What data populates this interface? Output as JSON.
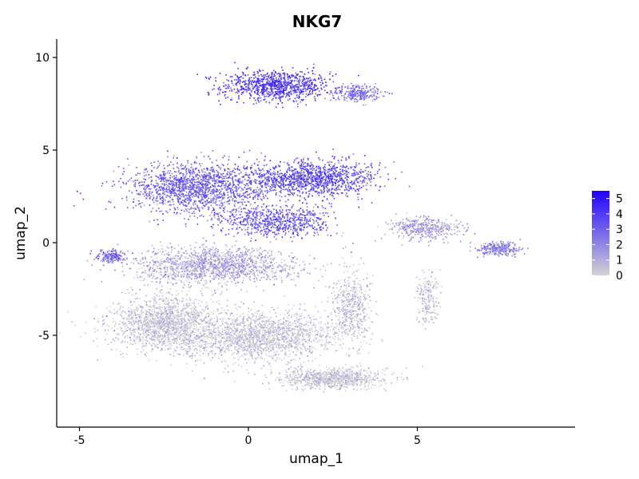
{
  "chart_data": {
    "type": "scatter",
    "title": "NKG7",
    "xlabel": "umap_1",
    "ylabel": "umap_2",
    "xlim": [
      -5.7,
      9.6
    ],
    "ylim": [
      -9.8,
      10.9
    ],
    "xticks": [
      -5,
      0,
      5
    ],
    "xtick_labels": [
      "-5",
      "0",
      "5"
    ],
    "yticks": [
      -5,
      0,
      5,
      10
    ],
    "ytick_labels": [
      "-5",
      "0",
      "5",
      "10"
    ],
    "grid": false,
    "legend_placement": "right",
    "colorbar": {
      "min": 0,
      "max": 5.5,
      "ticks": [
        5,
        4,
        3,
        2,
        1,
        0
      ],
      "tick_labels": [
        "5",
        "4",
        "3",
        "2",
        "1",
        "0"
      ],
      "low_color": "#d3d3d3",
      "high_color": "#1f00ff"
    },
    "clusters": [
      {
        "label": "top-island",
        "x": [
          -1,
          4.2
        ],
        "y": [
          6.3,
          9.9
        ],
        "expression": 4.2
      },
      {
        "label": "upper-main-body",
        "x": [
          -3.9,
          4.0
        ],
        "y": [
          0.5,
          5.0
        ],
        "expression": 3.3
      },
      {
        "label": "left-tip",
        "x": [
          -4.6,
          -3.6
        ],
        "y": [
          -1.1,
          -0.4
        ],
        "expression": 3.1
      },
      {
        "label": "middle-band",
        "x": [
          -3.6,
          3.5
        ],
        "y": [
          -2.5,
          0.8
        ],
        "expression": 1.2
      },
      {
        "label": "lower-main-body",
        "x": [
          -4.4,
          4.5
        ],
        "y": [
          -8.3,
          -2.5
        ],
        "expression": 0.2
      },
      {
        "label": "right-arm",
        "x": [
          3.8,
          8.2
        ],
        "y": [
          -1.3,
          1.8
        ],
        "expression": 2.0
      }
    ]
  }
}
